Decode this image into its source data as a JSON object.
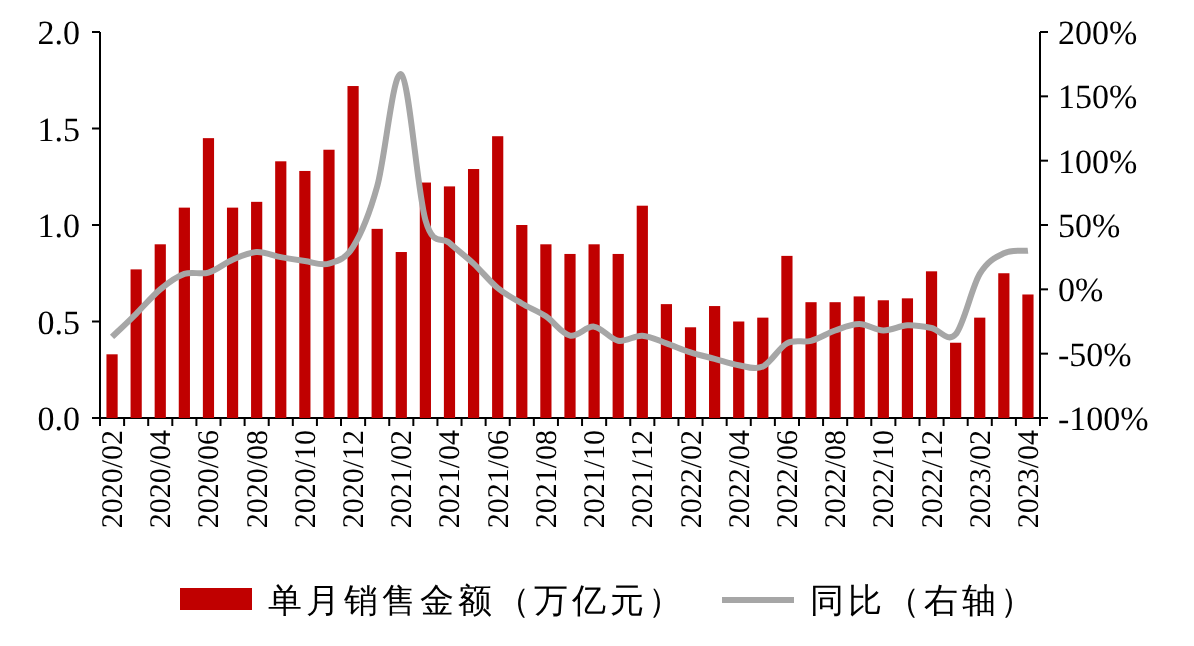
{
  "chart_data": {
    "type": "bar",
    "categories": [
      "2020/02",
      null,
      "2020/04",
      null,
      "2020/06",
      null,
      "2020/08",
      null,
      "2020/10",
      null,
      "2020/12",
      null,
      "2021/02",
      null,
      "2021/04",
      null,
      "2021/06",
      null,
      "2021/08",
      null,
      "2021/10",
      null,
      "2021/12",
      null,
      "2022/02",
      null,
      "2022/04",
      null,
      "2022/06",
      null,
      "2022/08",
      null,
      "2022/10",
      null,
      "2022/12",
      null,
      "2023/02",
      null,
      "2023/04"
    ],
    "series": [
      {
        "name": "单月销售金额（万亿元）",
        "color": "#c00000",
        "values": [
          0.33,
          0.77,
          0.9,
          1.09,
          1.45,
          1.09,
          1.12,
          1.33,
          1.28,
          1.39,
          1.72,
          0.98,
          0.86,
          1.22,
          1.2,
          1.29,
          1.46,
          1.0,
          0.9,
          0.85,
          0.9,
          0.85,
          1.1,
          0.59,
          0.47,
          0.58,
          0.5,
          0.52,
          0.84,
          0.6,
          0.6,
          0.63,
          0.61,
          0.62,
          0.76,
          0.39,
          0.52,
          0.75,
          0.64
        ]
      },
      {
        "name": "同比（右轴）",
        "type": "line",
        "axis": "y2",
        "color": "#a6a6a6",
        "values": [
          -37,
          -19,
          0,
          12,
          13,
          23,
          29,
          25,
          22,
          20,
          33,
          80,
          167,
          54,
          36,
          20,
          1,
          -11,
          -21,
          -36,
          -29,
          -40,
          -36,
          -42,
          -49,
          -54,
          -59,
          -60,
          -42,
          -40,
          -32,
          -27,
          -32,
          -28,
          -30,
          -35,
          12,
          28,
          30
        ]
      }
    ],
    "ylim": [
      0,
      2
    ],
    "yticks": [
      {
        "value": 0,
        "label": "0.0"
      },
      {
        "value": 0.5,
        "label": "0.5"
      },
      {
        "value": 1,
        "label": "1.0"
      },
      {
        "value": 1.5,
        "label": "1.5"
      },
      {
        "value": 2,
        "label": "2.0"
      }
    ],
    "y2lim": [
      -100,
      200
    ],
    "y2ticks": [
      {
        "value": -100,
        "label": "-100%"
      },
      {
        "value": -50,
        "label": "-50%"
      },
      {
        "value": 0,
        "label": "0%"
      },
      {
        "value": 50,
        "label": "50%"
      },
      {
        "value": 100,
        "label": "100%"
      },
      {
        "value": 150,
        "label": "150%"
      },
      {
        "value": 200,
        "label": "200%"
      }
    ],
    "legend": "bottom"
  }
}
